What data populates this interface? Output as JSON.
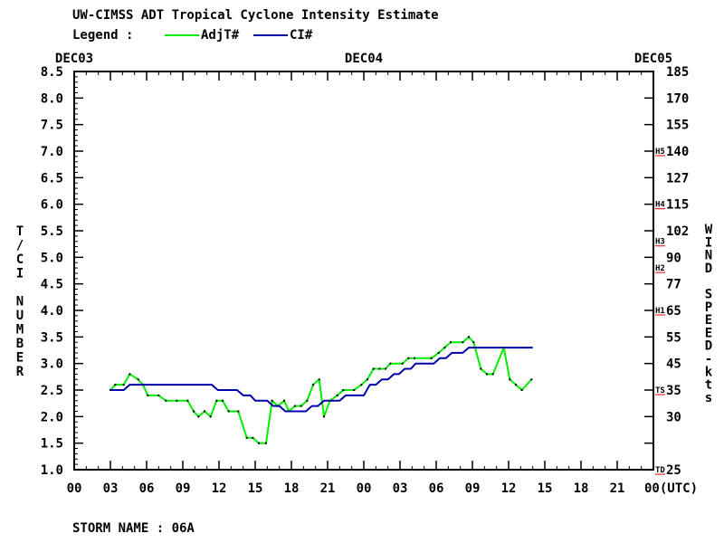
{
  "title": "UW-CIMSS ADT Tropical Cyclone Intensity Estimate",
  "legend": {
    "label": "Legend :",
    "entries": [
      {
        "name": "AdjT#",
        "color": "#00ee00"
      },
      {
        "name": "CI#",
        "color": "#0000aa"
      }
    ]
  },
  "storm_name": "STORM NAME : 06A",
  "chart_data": {
    "type": "line",
    "title": "UW-CIMSS ADT Tropical Cyclone Intensity Estimate",
    "left_axis": {
      "label": "T/CI NUMBER",
      "range": [
        1.0,
        8.5
      ],
      "ticks": [
        "1.0",
        "1.5",
        "2.0",
        "2.5",
        "3.0",
        "3.5",
        "4.0",
        "4.5",
        "5.0",
        "5.5",
        "6.0",
        "6.5",
        "7.0",
        "7.5",
        "8.0",
        "8.5"
      ]
    },
    "right_axis": {
      "label": "WIND SPEED-kts",
      "ticks": [
        "25",
        "30",
        "35",
        "45",
        "55",
        "65",
        "77",
        "90",
        "102",
        "115",
        "127",
        "140",
        "155",
        "170",
        "185"
      ]
    },
    "category_markers": [
      {
        "label": "TD",
        "ci": 1.0
      },
      {
        "label": "TS",
        "ci": 2.5
      },
      {
        "label": "H1",
        "ci": 4.0
      },
      {
        "label": "H2",
        "ci": 4.8
      },
      {
        "label": "H3",
        "ci": 5.3
      },
      {
        "label": "H4",
        "ci": 6.0
      },
      {
        "label": "H5",
        "ci": 7.0
      }
    ],
    "x_axis": {
      "unit": "(UTC)",
      "range_hours": [
        0,
        48
      ],
      "ticks": [
        "00",
        "03",
        "06",
        "09",
        "12",
        "15",
        "18",
        "21",
        "00",
        "03",
        "06",
        "09",
        "12",
        "15",
        "18",
        "21",
        "00"
      ],
      "date_labels": [
        {
          "label": "DEC03",
          "hour": 0
        },
        {
          "label": "DEC04",
          "hour": 24
        },
        {
          "label": "DEC05",
          "hour": 48
        }
      ]
    },
    "series": [
      {
        "name": "AdjT#",
        "color": "#00ee00",
        "points": [
          [
            3.0,
            2.5
          ],
          [
            3.4,
            2.6
          ],
          [
            4.1,
            2.6
          ],
          [
            4.6,
            2.8
          ],
          [
            5.3,
            2.7
          ],
          [
            5.7,
            2.6
          ],
          [
            6.1,
            2.4
          ],
          [
            7.0,
            2.4
          ],
          [
            7.6,
            2.3
          ],
          [
            8.5,
            2.3
          ],
          [
            9.4,
            2.3
          ],
          [
            9.9,
            2.1
          ],
          [
            10.3,
            2.0
          ],
          [
            10.8,
            2.1
          ],
          [
            11.3,
            2.0
          ],
          [
            11.8,
            2.3
          ],
          [
            12.3,
            2.3
          ],
          [
            12.8,
            2.1
          ],
          [
            13.6,
            2.1
          ],
          [
            14.3,
            1.6
          ],
          [
            14.8,
            1.6
          ],
          [
            15.3,
            1.5
          ],
          [
            15.9,
            1.5
          ],
          [
            16.4,
            2.3
          ],
          [
            16.9,
            2.2
          ],
          [
            17.4,
            2.3
          ],
          [
            17.8,
            2.1
          ],
          [
            18.3,
            2.2
          ],
          [
            18.8,
            2.2
          ],
          [
            19.3,
            2.3
          ],
          [
            19.8,
            2.6
          ],
          [
            20.3,
            2.7
          ],
          [
            20.7,
            2.0
          ],
          [
            21.2,
            2.3
          ],
          [
            21.8,
            2.4
          ],
          [
            22.3,
            2.5
          ],
          [
            23.2,
            2.5
          ],
          [
            23.8,
            2.6
          ],
          [
            24.3,
            2.7
          ],
          [
            24.8,
            2.9
          ],
          [
            25.3,
            2.9
          ],
          [
            25.8,
            2.9
          ],
          [
            26.2,
            3.0
          ],
          [
            27.2,
            3.0
          ],
          [
            27.7,
            3.1
          ],
          [
            28.2,
            3.1
          ],
          [
            29.6,
            3.1
          ],
          [
            30.2,
            3.2
          ],
          [
            30.7,
            3.3
          ],
          [
            31.2,
            3.4
          ],
          [
            32.2,
            3.4
          ],
          [
            32.7,
            3.5
          ],
          [
            33.1,
            3.4
          ],
          [
            33.7,
            2.9
          ],
          [
            34.2,
            2.8
          ],
          [
            34.7,
            2.8
          ],
          [
            35.6,
            3.3
          ],
          [
            36.1,
            2.7
          ],
          [
            36.6,
            2.6
          ],
          [
            37.1,
            2.5
          ],
          [
            37.9,
            2.7
          ]
        ]
      },
      {
        "name": "CI#",
        "color": "#0000aa",
        "points": [
          [
            3.0,
            2.5
          ],
          [
            4.1,
            2.5
          ],
          [
            4.6,
            2.6
          ],
          [
            11.4,
            2.6
          ],
          [
            11.9,
            2.5
          ],
          [
            13.5,
            2.5
          ],
          [
            14.0,
            2.4
          ],
          [
            14.6,
            2.4
          ],
          [
            15.0,
            2.3
          ],
          [
            16.0,
            2.3
          ],
          [
            16.5,
            2.2
          ],
          [
            17.0,
            2.2
          ],
          [
            17.5,
            2.1
          ],
          [
            19.2,
            2.1
          ],
          [
            19.7,
            2.2
          ],
          [
            20.2,
            2.2
          ],
          [
            20.7,
            2.3
          ],
          [
            22.0,
            2.3
          ],
          [
            22.5,
            2.4
          ],
          [
            24.0,
            2.4
          ],
          [
            24.5,
            2.6
          ],
          [
            25.0,
            2.6
          ],
          [
            25.5,
            2.7
          ],
          [
            26.0,
            2.7
          ],
          [
            26.5,
            2.8
          ],
          [
            26.9,
            2.8
          ],
          [
            27.4,
            2.9
          ],
          [
            27.9,
            2.9
          ],
          [
            28.3,
            3.0
          ],
          [
            29.8,
            3.0
          ],
          [
            30.3,
            3.1
          ],
          [
            30.8,
            3.1
          ],
          [
            31.3,
            3.2
          ],
          [
            32.2,
            3.2
          ],
          [
            32.7,
            3.3
          ],
          [
            38.0,
            3.3
          ]
        ]
      }
    ]
  }
}
